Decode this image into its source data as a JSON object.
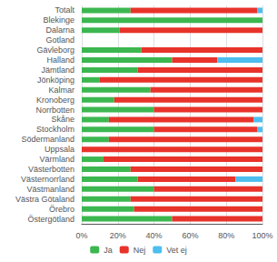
{
  "chart_data": {
    "type": "bar",
    "orientation": "horizontal",
    "stacked": true,
    "categories": [
      "Totalt",
      "Blekinge",
      "Dalarna",
      "Gotland",
      "Gävleborg",
      "Halland",
      "Jämtland",
      "Jönköping",
      "Kalmar",
      "Kronoberg",
      "Norrbotten",
      "Skåne",
      "Stockholm",
      "Södermanland",
      "Uppsala",
      "Värmland",
      "Västerbotten",
      "Västernorrland",
      "Västmanland",
      "Västra Götaland",
      "Örebro",
      "Östergötland"
    ],
    "series": [
      {
        "name": "Ja",
        "color": "#3CB750",
        "values": [
          27,
          100,
          21,
          0,
          33,
          50,
          31,
          10,
          38,
          18,
          40,
          15,
          40,
          15,
          0,
          12,
          27,
          31,
          40,
          27,
          29,
          50
        ]
      },
      {
        "name": "Nej",
        "color": "#E8332A",
        "values": [
          70,
          0,
          79,
          0,
          67,
          25,
          69,
          90,
          62,
          82,
          60,
          80,
          57,
          85,
          100,
          88,
          73,
          54,
          60,
          73,
          71,
          50
        ]
      },
      {
        "name": "Vet ej",
        "color": "#4DBEEE",
        "values": [
          3,
          0,
          0,
          0,
          0,
          25,
          0,
          0,
          0,
          0,
          0,
          5,
          3,
          0,
          0,
          0,
          0,
          15,
          0,
          0,
          0,
          0
        ]
      }
    ],
    "xlim": [
      0,
      100
    ],
    "xticks": [
      {
        "value": 0,
        "label": "0%"
      },
      {
        "value": 20,
        "label": "20%"
      },
      {
        "value": 40,
        "label": "40%"
      },
      {
        "value": 60,
        "label": "60%"
      },
      {
        "value": 80,
        "label": "80%"
      },
      {
        "value": 100,
        "label": "100%"
      }
    ],
    "grid": true,
    "legend": "bottom"
  }
}
